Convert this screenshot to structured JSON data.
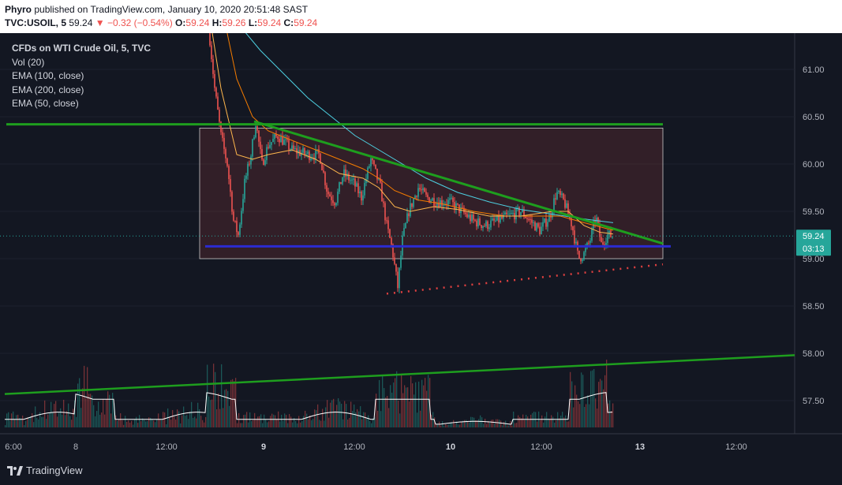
{
  "header": {
    "author": "Phyro",
    "published": " published on TradingView.com, January 10, 2020 20:51:48 SAST",
    "symbol": "TVC:USOIL, 5",
    "last": "59.24",
    "change": "−0.32 (−0.54%)",
    "o_label": "O:",
    "o_value": "59.24",
    "h_label": "H:",
    "h_value": "59.26",
    "l_label": "L:",
    "l_value": "59.24",
    "c_label": "C:",
    "c_value": "59.24"
  },
  "legend": {
    "title": "CFDs on WTI Crude Oil, 5, TVC",
    "items": [
      "Vol (20)",
      "EMA (100, close)",
      "EMA (200, close)",
      "EMA (50, close)"
    ]
  },
  "price_tag": {
    "price": "59.24",
    "countdown": "03:13"
  },
  "brand": "TradingView",
  "colors": {
    "background": "#131722",
    "up": "#26a69a",
    "down": "#ef5350",
    "ema100": "#f57c00",
    "ema200": "#4dd0e1",
    "ema50": "#ffb74d",
    "trendline": "#1e9e1e",
    "support": "#2b2bd0",
    "box": "#ef5350"
  },
  "chart_data": {
    "type": "candlestick",
    "y_ticks": [
      "61.00",
      "60.50",
      "60.00",
      "59.50",
      "59.00",
      "58.50",
      "58.00",
      "57.50"
    ],
    "x_ticks": [
      "6:00",
      "8",
      "12:00",
      "9",
      "12:00",
      "10",
      "12:00",
      "13",
      "12:00"
    ],
    "ylim": [
      57.15,
      61.45
    ],
    "last_price": 59.24,
    "price_path": [
      [
        265,
        61.4
      ],
      [
        272,
        60.8
      ],
      [
        280,
        60.3
      ],
      [
        288,
        60.0
      ],
      [
        296,
        59.4
      ],
      [
        302,
        59.25
      ],
      [
        310,
        59.8
      ],
      [
        318,
        60.1
      ],
      [
        324,
        60.45
      ],
      [
        332,
        60.0
      ],
      [
        340,
        60.2
      ],
      [
        352,
        60.3
      ],
      [
        370,
        60.15
      ],
      [
        390,
        60.1
      ],
      [
        405,
        60.1
      ],
      [
        415,
        59.7
      ],
      [
        425,
        59.6
      ],
      [
        435,
        59.9
      ],
      [
        448,
        59.8
      ],
      [
        458,
        59.65
      ],
      [
        470,
        60.05
      ],
      [
        482,
        59.75
      ],
      [
        490,
        59.35
      ],
      [
        497,
        59.1
      ],
      [
        504,
        58.7
      ],
      [
        510,
        59.2
      ],
      [
        518,
        59.5
      ],
      [
        530,
        59.75
      ],
      [
        540,
        59.65
      ],
      [
        555,
        59.6
      ],
      [
        570,
        59.6
      ],
      [
        585,
        59.5
      ],
      [
        600,
        59.4
      ],
      [
        615,
        59.35
      ],
      [
        630,
        59.4
      ],
      [
        645,
        59.45
      ],
      [
        660,
        59.5
      ],
      [
        672,
        59.4
      ],
      [
        684,
        59.3
      ],
      [
        697,
        59.45
      ],
      [
        705,
        59.7
      ],
      [
        715,
        59.6
      ],
      [
        725,
        59.35
      ],
      [
        733,
        59.0
      ],
      [
        740,
        59.05
      ],
      [
        748,
        59.2
      ],
      [
        755,
        59.45
      ],
      [
        762,
        59.15
      ],
      [
        770,
        59.25
      ],
      [
        777,
        59.24
      ]
    ],
    "ema50": [
      [
        265,
        61.6
      ],
      [
        280,
        60.8
      ],
      [
        300,
        60.1
      ],
      [
        320,
        60.05
      ],
      [
        340,
        60.1
      ],
      [
        370,
        60.15
      ],
      [
        400,
        60.05
      ],
      [
        430,
        59.9
      ],
      [
        460,
        59.85
      ],
      [
        480,
        59.75
      ],
      [
        500,
        59.55
      ],
      [
        520,
        59.5
      ],
      [
        550,
        59.55
      ],
      [
        580,
        59.52
      ],
      [
        620,
        59.45
      ],
      [
        660,
        59.45
      ],
      [
        700,
        59.5
      ],
      [
        720,
        59.5
      ],
      [
        740,
        59.35
      ],
      [
        760,
        59.28
      ],
      [
        777,
        59.26
      ]
    ],
    "ema100": [
      [
        285,
        61.5
      ],
      [
        300,
        60.9
      ],
      [
        320,
        60.5
      ],
      [
        340,
        60.35
      ],
      [
        370,
        60.25
      ],
      [
        400,
        60.15
      ],
      [
        430,
        60.05
      ],
      [
        460,
        59.95
      ],
      [
        480,
        59.85
      ],
      [
        500,
        59.72
      ],
      [
        530,
        59.62
      ],
      [
        560,
        59.58
      ],
      [
        600,
        59.5
      ],
      [
        640,
        59.45
      ],
      [
        680,
        59.45
      ],
      [
        710,
        59.45
      ],
      [
        740,
        59.38
      ],
      [
        777,
        59.3
      ]
    ],
    "ema200": [
      [
        300,
        61.5
      ],
      [
        330,
        61.2
      ],
      [
        360,
        60.95
      ],
      [
        390,
        60.7
      ],
      [
        420,
        60.5
      ],
      [
        450,
        60.3
      ],
      [
        480,
        60.15
      ],
      [
        510,
        60.0
      ],
      [
        540,
        59.85
      ],
      [
        580,
        59.7
      ],
      [
        620,
        59.6
      ],
      [
        660,
        59.52
      ],
      [
        700,
        59.47
      ],
      [
        740,
        59.42
      ],
      [
        777,
        59.38
      ]
    ],
    "drawings": {
      "resistance": [
        60.42,
        60.42
      ],
      "descending_trendline": [
        [
          322,
          60.45
        ],
        [
          840,
          59.16
        ]
      ],
      "support": [
        59.13,
        59.13
      ],
      "dotted_rising": [
        [
          490,
          58.63
        ],
        [
          840,
          58.94
        ]
      ],
      "rising_long": [
        [
          6,
          57.57
        ],
        [
          1007,
          57.98
        ]
      ],
      "range_box": [
        59.0,
        60.38
      ]
    }
  }
}
